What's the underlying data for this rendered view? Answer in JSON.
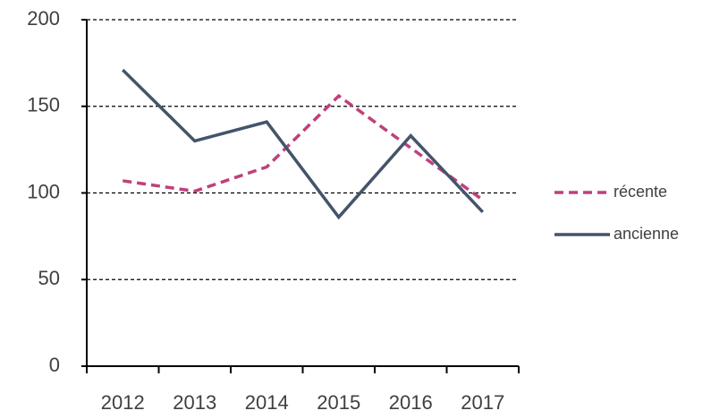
{
  "chart_data": {
    "type": "line",
    "categories": [
      "2012",
      "2013",
      "2014",
      "2015",
      "2016",
      "2017"
    ],
    "series": [
      {
        "name": "récente",
        "color": "#c0407a",
        "dashed": true,
        "values": [
          107,
          101,
          115,
          156,
          126,
          96
        ]
      },
      {
        "name": "ancienne",
        "color": "#44546a",
        "dashed": false,
        "values": [
          171,
          130,
          141,
          86,
          133,
          89
        ]
      }
    ],
    "ylim": [
      0,
      200
    ],
    "yticks": [
      0,
      50,
      100,
      150,
      200
    ],
    "grid": true,
    "legend": "right"
  }
}
